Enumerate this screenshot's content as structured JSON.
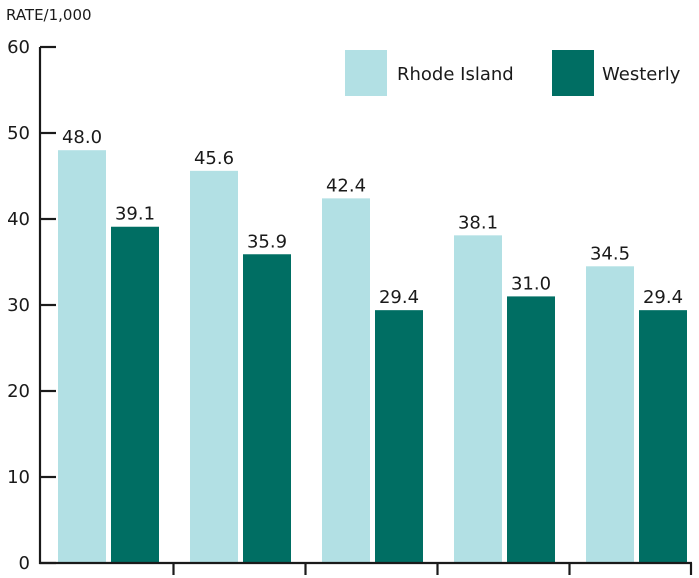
{
  "chart_data": {
    "type": "bar",
    "title": "",
    "ylabel": "RATE/1,000",
    "xlabel": "",
    "ylim": [
      0,
      60
    ],
    "yticks": [
      0,
      10,
      20,
      30,
      40,
      50,
      60
    ],
    "categories": [
      "",
      "",
      "",
      "",
      ""
    ],
    "series": [
      {
        "name": "Rhode Island",
        "color": "#b2e0e4",
        "values": [
          48.0,
          45.6,
          42.4,
          38.1,
          34.5
        ],
        "labels": [
          "48.0",
          "45.6",
          "42.4",
          "38.1",
          "34.5"
        ]
      },
      {
        "name": "Westerly",
        "color": "#006e63",
        "values": [
          39.1,
          35.9,
          29.4,
          31.0,
          29.4
        ],
        "labels": [
          "39.1",
          "35.9",
          "29.4",
          "31.0",
          "29.4"
        ]
      }
    ],
    "legend": "top-right",
    "grid": false
  }
}
